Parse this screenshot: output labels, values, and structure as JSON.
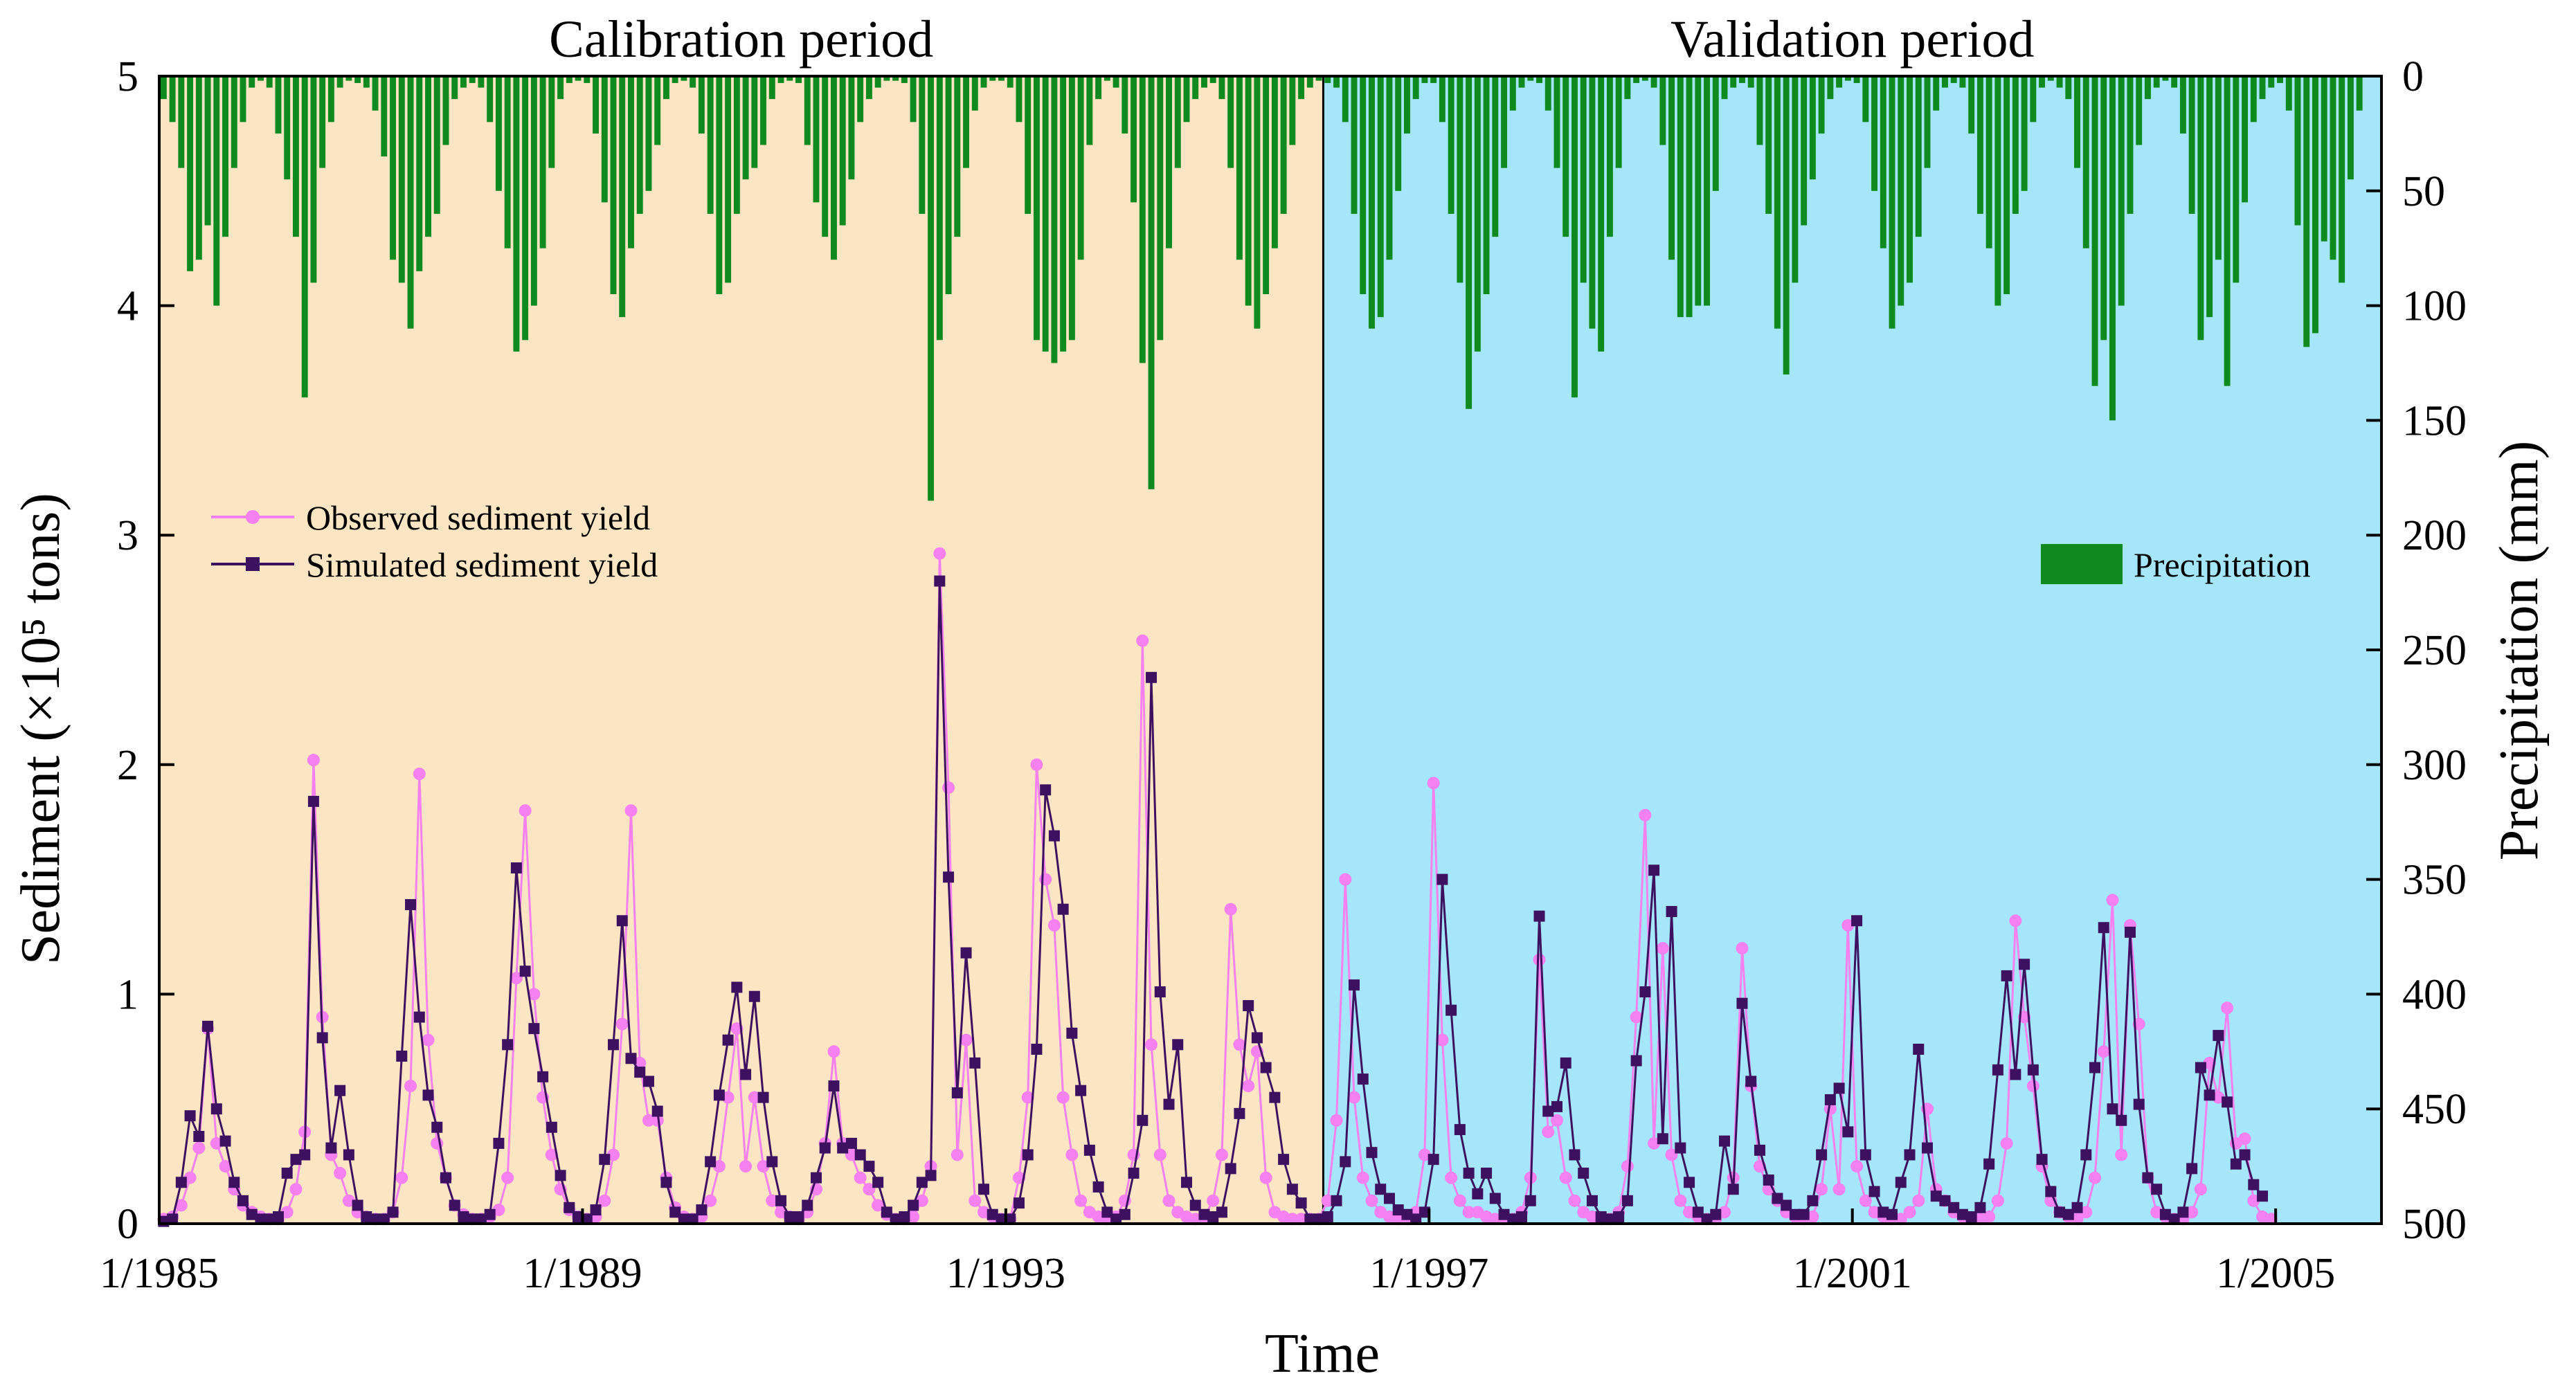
{
  "chart_data": {
    "type": "line",
    "xlabel": "Time",
    "ylabel_left": "Sediment (×10⁵ tons)",
    "ylabel_right": "Precipitation (mm)",
    "periods": [
      {
        "label": "Calibration period",
        "start_month": 0,
        "end_month": 132,
        "color": "#fce5c3"
      },
      {
        "label": "Validation period",
        "start_month": 132,
        "end_month": 252,
        "color": "#a6e6fa"
      }
    ],
    "x_range_months": [
      0,
      252
    ],
    "x_ticks": [
      {
        "label": "1/1985",
        "month": 0
      },
      {
        "label": "1/1989",
        "month": 48
      },
      {
        "label": "1/1993",
        "month": 96
      },
      {
        "label": "1/1997",
        "month": 144
      },
      {
        "label": "1/2001",
        "month": 192
      },
      {
        "label": "1/2005",
        "month": 240
      }
    ],
    "y_left": {
      "min": 0,
      "max": 5,
      "ticks": [
        "0",
        "1",
        "2",
        "3",
        "4",
        "5"
      ]
    },
    "y_right": {
      "min": 0,
      "max": 500,
      "inverted": true,
      "ticks": [
        "0",
        "50",
        "100",
        "150",
        "200",
        "250",
        "300",
        "350",
        "400",
        "450",
        "500"
      ]
    },
    "legend": {
      "observed": "Observed sediment yield",
      "simulated": "Simulated sediment yield",
      "precipitation": "Precipitation"
    },
    "colors": {
      "observed": "#f580f0",
      "simulated": "#3d1060",
      "precipitation": "#0f8a1e",
      "frame": "#000000"
    },
    "series": [
      {
        "name": "Observed sediment yield",
        "axis": "left",
        "values": [
          0.02,
          0.03,
          0.08,
          0.2,
          0.33,
          0.85,
          0.35,
          0.25,
          0.15,
          0.08,
          0.05,
          0.03,
          0.02,
          0.02,
          0.05,
          0.15,
          0.4,
          2.02,
          0.9,
          0.3,
          0.22,
          0.1,
          0.05,
          0.03,
          0.02,
          0.02,
          0.05,
          0.2,
          0.6,
          1.96,
          0.8,
          0.35,
          0.2,
          0.08,
          0.04,
          0.02,
          0.02,
          0.03,
          0.06,
          0.2,
          1.07,
          1.8,
          1.0,
          0.55,
          0.3,
          0.15,
          0.06,
          0.03,
          0.02,
          0.03,
          0.1,
          0.3,
          0.87,
          1.8,
          0.7,
          0.45,
          0.45,
          0.2,
          0.07,
          0.03,
          0.02,
          0.03,
          0.1,
          0.25,
          0.55,
          0.85,
          0.25,
          0.55,
          0.25,
          0.1,
          0.05,
          0.03,
          0.02,
          0.05,
          0.15,
          0.35,
          0.75,
          0.35,
          0.3,
          0.2,
          0.15,
          0.08,
          0.04,
          0.02,
          0.02,
          0.03,
          0.1,
          0.25,
          2.92,
          1.9,
          0.3,
          0.8,
          0.1,
          0.05,
          0.03,
          0.02,
          0.02,
          0.2,
          0.55,
          2.0,
          1.5,
          1.3,
          0.55,
          0.3,
          0.1,
          0.05,
          0.03,
          0.02,
          0.03,
          0.1,
          0.3,
          2.54,
          0.78,
          0.3,
          0.1,
          0.05,
          0.03,
          0.02,
          0.03,
          0.1,
          0.3,
          1.37,
          0.78,
          0.6,
          0.75,
          0.2,
          0.05,
          0.03,
          0.02,
          0.02,
          0.02,
          0.02,
          0.1,
          0.45,
          1.5,
          0.55,
          0.2,
          0.1,
          0.05,
          0.03,
          0.02,
          0.02,
          0.05,
          0.3,
          1.92,
          0.8,
          0.2,
          0.1,
          0.05,
          0.05,
          0.03,
          0.02,
          0.02,
          0.02,
          0.05,
          0.2,
          1.15,
          0.4,
          0.45,
          0.2,
          0.1,
          0.05,
          0.03,
          0.02,
          0.02,
          0.05,
          0.25,
          0.9,
          1.78,
          0.35,
          1.2,
          0.3,
          0.1,
          0.05,
          0.03,
          0.02,
          0.02,
          0.05,
          0.2,
          1.2,
          0.6,
          0.25,
          0.15,
          0.1,
          0.05,
          0.03,
          0.02,
          0.03,
          0.15,
          0.5,
          0.15,
          1.3,
          0.25,
          0.1,
          0.05,
          0.03,
          0.02,
          0.02,
          0.05,
          0.1,
          0.5,
          0.15,
          0.1,
          0.05,
          0.03,
          0.02,
          0.02,
          0.03,
          0.1,
          0.35,
          1.32,
          0.9,
          0.6,
          0.25,
          0.1,
          0.05,
          0.03,
          0.02,
          0.05,
          0.2,
          0.75,
          1.41,
          0.3,
          1.3,
          0.87,
          0.2,
          0.05,
          0.03,
          0.02,
          0.02,
          0.05,
          0.15,
          0.7,
          0.55,
          0.94,
          0.35,
          0.37,
          0.1,
          0.03,
          0.02
        ]
      },
      {
        "name": "Simulated sediment yield",
        "axis": "left",
        "values": [
          0.01,
          0.02,
          0.18,
          0.47,
          0.38,
          0.86,
          0.5,
          0.36,
          0.18,
          0.1,
          0.04,
          0.02,
          0.02,
          0.03,
          0.22,
          0.28,
          0.3,
          1.84,
          0.81,
          0.33,
          0.58,
          0.3,
          0.08,
          0.03,
          0.02,
          0.02,
          0.05,
          0.73,
          1.39,
          0.9,
          0.56,
          0.42,
          0.2,
          0.08,
          0.03,
          0.02,
          0.02,
          0.04,
          0.35,
          0.78,
          1.55,
          1.1,
          0.85,
          0.64,
          0.42,
          0.21,
          0.07,
          0.03,
          0.02,
          0.06,
          0.28,
          0.78,
          1.32,
          0.72,
          0.66,
          0.62,
          0.49,
          0.18,
          0.05,
          0.02,
          0.02,
          0.06,
          0.27,
          0.56,
          0.8,
          1.03,
          0.65,
          0.99,
          0.55,
          0.27,
          0.1,
          0.03,
          0.03,
          0.08,
          0.2,
          0.33,
          0.6,
          0.33,
          0.35,
          0.3,
          0.25,
          0.18,
          0.05,
          0.02,
          0.03,
          0.08,
          0.18,
          0.21,
          2.8,
          1.51,
          0.57,
          1.18,
          0.7,
          0.15,
          0.04,
          0.02,
          0.02,
          0.09,
          0.3,
          0.76,
          1.89,
          1.69,
          1.37,
          0.83,
          0.58,
          0.32,
          0.16,
          0.05,
          0.02,
          0.04,
          0.22,
          0.45,
          2.38,
          1.01,
          0.52,
          0.78,
          0.18,
          0.08,
          0.04,
          0.03,
          0.05,
          0.24,
          0.48,
          0.95,
          0.81,
          0.68,
          0.55,
          0.28,
          0.15,
          0.09,
          0.02,
          0.02,
          0.03,
          0.1,
          0.27,
          1.04,
          0.63,
          0.31,
          0.15,
          0.11,
          0.06,
          0.04,
          0.02,
          0.05,
          0.28,
          1.5,
          0.93,
          0.41,
          0.22,
          0.13,
          0.22,
          0.11,
          0.04,
          0.02,
          0.03,
          0.1,
          1.34,
          0.49,
          0.51,
          0.7,
          0.3,
          0.22,
          0.1,
          0.03,
          0.02,
          0.03,
          0.1,
          0.71,
          1.01,
          1.54,
          0.37,
          1.36,
          0.33,
          0.18,
          0.05,
          0.02,
          0.04,
          0.36,
          0.15,
          0.96,
          0.62,
          0.32,
          0.19,
          0.11,
          0.08,
          0.04,
          0.04,
          0.1,
          0.3,
          0.54,
          0.59,
          0.4,
          1.32,
          0.3,
          0.14,
          0.05,
          0.04,
          0.18,
          0.3,
          0.76,
          0.33,
          0.12,
          0.1,
          0.07,
          0.04,
          0.03,
          0.07,
          0.26,
          0.67,
          1.08,
          0.65,
          1.13,
          0.67,
          0.28,
          0.14,
          0.05,
          0.04,
          0.07,
          0.3,
          0.68,
          1.29,
          0.5,
          0.45,
          1.27,
          0.52,
          0.2,
          0.15,
          0.04,
          0.02,
          0.05,
          0.24,
          0.68,
          0.56,
          0.82,
          0.53,
          0.26,
          0.3,
          0.17,
          0.12
        ]
      },
      {
        "name": "Precipitation",
        "axis": "right",
        "values": [
          10,
          20,
          40,
          85,
          80,
          65,
          100,
          70,
          40,
          20,
          5,
          2,
          5,
          25,
          45,
          70,
          140,
          90,
          40,
          20,
          5,
          2,
          3,
          5,
          15,
          35,
          80,
          90,
          110,
          85,
          70,
          60,
          30,
          10,
          5,
          3,
          5,
          20,
          50,
          75,
          120,
          115,
          100,
          75,
          40,
          10,
          3,
          2,
          3,
          25,
          55,
          95,
          105,
          75,
          60,
          50,
          30,
          10,
          3,
          2,
          5,
          25,
          60,
          95,
          90,
          60,
          45,
          40,
          30,
          10,
          3,
          2,
          3,
          30,
          55,
          70,
          80,
          65,
          45,
          20,
          10,
          5,
          2,
          2,
          3,
          20,
          60,
          185,
          115,
          95,
          70,
          40,
          15,
          5,
          2,
          2,
          5,
          20,
          60,
          115,
          120,
          125,
          120,
          115,
          80,
          30,
          10,
          2,
          5,
          25,
          55,
          125,
          180,
          115,
          75,
          40,
          20,
          10,
          5,
          3,
          10,
          40,
          80,
          100,
          110,
          95,
          75,
          60,
          30,
          10,
          5,
          2,
          3,
          5,
          20,
          60,
          95,
          110,
          105,
          80,
          50,
          25,
          10,
          3,
          3,
          20,
          60,
          90,
          145,
          120,
          95,
          70,
          40,
          15,
          5,
          2,
          3,
          15,
          40,
          70,
          140,
          90,
          110,
          120,
          70,
          40,
          10,
          3,
          2,
          5,
          30,
          80,
          105,
          105,
          100,
          100,
          50,
          10,
          5,
          3,
          5,
          30,
          60,
          110,
          130,
          90,
          65,
          45,
          25,
          10,
          5,
          2,
          3,
          20,
          50,
          75,
          110,
          100,
          90,
          70,
          40,
          15,
          5,
          3,
          5,
          25,
          60,
          75,
          100,
          95,
          60,
          50,
          20,
          5,
          2,
          5,
          10,
          40,
          75,
          135,
          115,
          150,
          100,
          60,
          30,
          10,
          5,
          2,
          5,
          25,
          60,
          115,
          105,
          80,
          135,
          90,
          55,
          20,
          10,
          5,
          3,
          15,
          65,
          118,
          112,
          72,
          80,
          90,
          45,
          15
        ]
      }
    ]
  }
}
